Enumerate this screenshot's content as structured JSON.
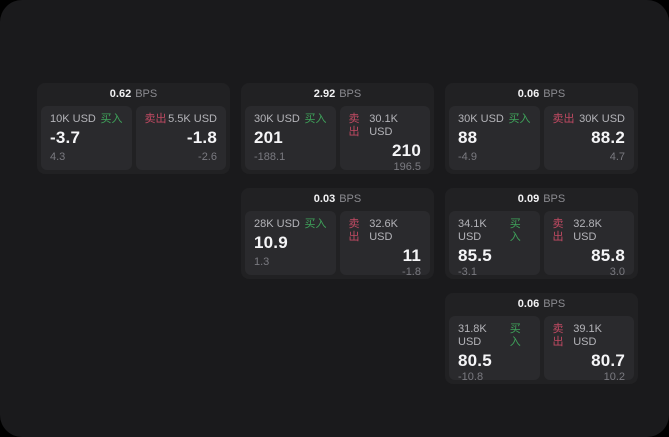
{
  "labels": {
    "bps_unit": "BPS",
    "buy": "买入",
    "sell": "卖出"
  },
  "colors": {
    "outer_bg": "#000000",
    "panel_bg": "#1a1a1c",
    "card_bg": "#212123",
    "tile_bg": "#2a2a2d",
    "primary_text": "#f5f5f7",
    "secondary_text": "#7a7a80",
    "size_text": "#b4b4b9",
    "buy_green": "#3fa45b",
    "sell_red": "#c14a63"
  },
  "cards": [
    {
      "bps": "0.62",
      "buy": {
        "size": "10K USD",
        "price": "-3.7",
        "delta": "4.3"
      },
      "sell": {
        "size": "5.5K USD",
        "price": "-1.8",
        "delta": "-2.6"
      }
    },
    {
      "bps": "2.92",
      "buy": {
        "size": "30K USD",
        "price": "201",
        "delta": "-188.1"
      },
      "sell": {
        "size": "30.1K USD",
        "price": "210",
        "delta": "196.5"
      }
    },
    {
      "bps": "0.06",
      "buy": {
        "size": "30K USD",
        "price": "88",
        "delta": "-4.9"
      },
      "sell": {
        "size": "30K USD",
        "price": "88.2",
        "delta": "4.7"
      }
    },
    {
      "bps": "0.03",
      "buy": {
        "size": "28K USD",
        "price": "10.9",
        "delta": "1.3"
      },
      "sell": {
        "size": "32.6K USD",
        "price": "11",
        "delta": "-1.8"
      }
    },
    {
      "bps": "0.09",
      "buy": {
        "size": "34.1K USD",
        "price": "85.5",
        "delta": "-3.1"
      },
      "sell": {
        "size": "32.8K USD",
        "price": "85.8",
        "delta": "3.0"
      }
    },
    {
      "bps": "0.06",
      "buy": {
        "size": "31.8K USD",
        "price": "80.5",
        "delta": "-10.8"
      },
      "sell": {
        "size": "39.1K USD",
        "price": "80.7",
        "delta": "10.2"
      }
    }
  ]
}
